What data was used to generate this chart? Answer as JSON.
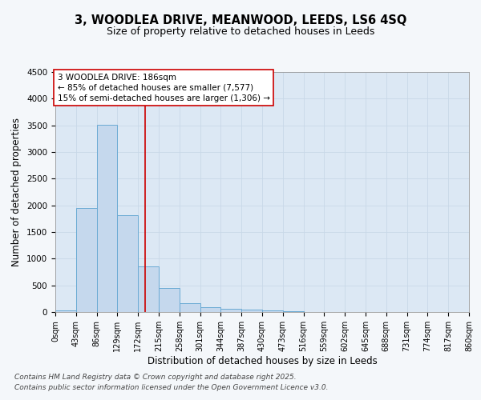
{
  "title_line1": "3, WOODLEA DRIVE, MEANWOOD, LEEDS, LS6 4SQ",
  "title_line2": "Size of property relative to detached houses in Leeds",
  "xlabel": "Distribution of detached houses by size in Leeds",
  "ylabel": "Number of detached properties",
  "bar_edges": [
    0,
    43,
    86,
    129,
    172,
    215,
    258,
    301,
    344,
    387,
    430,
    473,
    516,
    559,
    602,
    645,
    688,
    731,
    774,
    817,
    860
  ],
  "bar_heights": [
    30,
    1950,
    3510,
    1810,
    850,
    450,
    160,
    90,
    60,
    40,
    25,
    10,
    3,
    2,
    1,
    1,
    0,
    0,
    0,
    0
  ],
  "bar_color": "#c5d8ed",
  "bar_edgecolor": "#6aaad4",
  "bar_linewidth": 0.7,
  "vline_x": 186,
  "vline_color": "#cc0000",
  "vline_linewidth": 1.2,
  "annotation_title": "3 WOODLEA DRIVE: 186sqm",
  "annotation_line2": "← 85% of detached houses are smaller (7,577)",
  "annotation_line3": "15% of semi-detached houses are larger (1,306) →",
  "annotation_box_color": "#cc0000",
  "annotation_bg": "#ffffff",
  "ylim": [
    0,
    4500
  ],
  "xlim": [
    0,
    860
  ],
  "xtick_labels": [
    "0sqm",
    "43sqm",
    "86sqm",
    "129sqm",
    "172sqm",
    "215sqm",
    "258sqm",
    "301sqm",
    "344sqm",
    "387sqm",
    "430sqm",
    "473sqm",
    "516sqm",
    "559sqm",
    "602sqm",
    "645sqm",
    "688sqm",
    "731sqm",
    "774sqm",
    "817sqm",
    "860sqm"
  ],
  "xtick_values": [
    0,
    43,
    86,
    129,
    172,
    215,
    258,
    301,
    344,
    387,
    430,
    473,
    516,
    559,
    602,
    645,
    688,
    731,
    774,
    817,
    860
  ],
  "ytick_values": [
    0,
    500,
    1000,
    1500,
    2000,
    2500,
    3000,
    3500,
    4000,
    4500
  ],
  "grid_color": "#c8d8e8",
  "fig_bg_color": "#f4f7fa",
  "plot_bg_color": "#dce8f4",
  "footnote_line1": "Contains HM Land Registry data © Crown copyright and database right 2025.",
  "footnote_line2": "Contains public sector information licensed under the Open Government Licence v3.0.",
  "title_fontsize": 10.5,
  "subtitle_fontsize": 9,
  "axis_label_fontsize": 8.5,
  "tick_fontsize": 7,
  "annotation_fontsize": 7.5,
  "footnote_fontsize": 6.5
}
